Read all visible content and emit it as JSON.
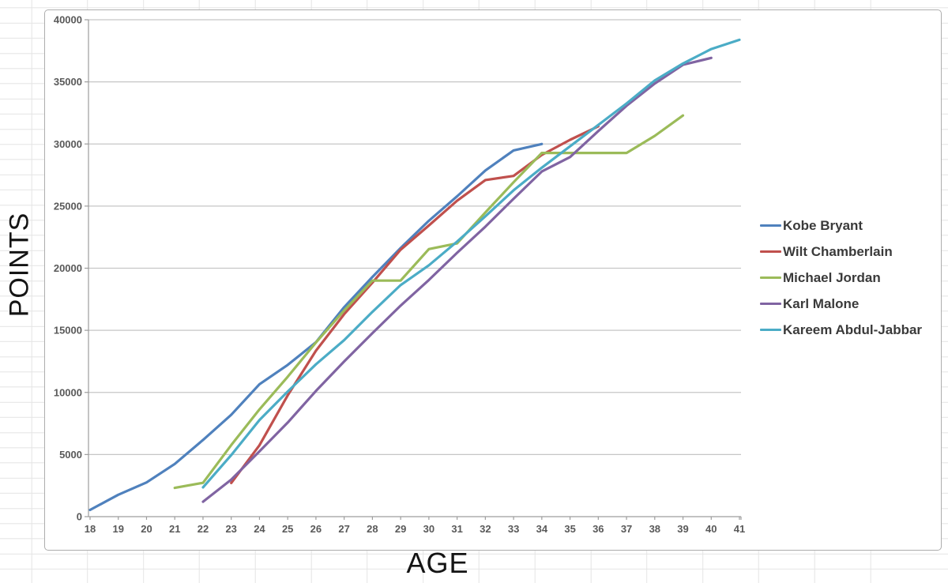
{
  "ui": {
    "colors": {
      "sheet_line": "#e4e4e4",
      "chart_background": "#ffffff",
      "chart_border": "#adadad",
      "plot_gridline": "#c6c6c6",
      "axis_line": "#9d9d9d",
      "tick_label": "#595959",
      "axis_title": "#141414",
      "legend_text": "#3a3a3a"
    }
  },
  "chart_data": {
    "type": "line",
    "title": "",
    "xlabel": "AGE",
    "ylabel": "POINTS",
    "x_ticks": [
      18,
      19,
      20,
      21,
      22,
      23,
      24,
      25,
      26,
      27,
      28,
      29,
      30,
      31,
      32,
      33,
      34,
      35,
      36,
      37,
      38,
      39,
      40,
      41
    ],
    "xlim": [
      18,
      41
    ],
    "ylim": [
      0,
      40000
    ],
    "y_tick_step": 5000,
    "y_tick_labels": [
      "0",
      "5000",
      "10000",
      "15000",
      "20000",
      "25000",
      "30000",
      "35000",
      "40000"
    ],
    "grid": "horizontal-only",
    "legend_position": "right",
    "series": [
      {
        "name": "Kobe Bryant",
        "color": "#4F81BD",
        "start_age": 18,
        "values": [
          539,
          1759,
          2755,
          4240,
          6178,
          8197,
          10658,
          12215,
          14034,
          16866,
          19296,
          21619,
          23820,
          25790,
          27868,
          29484,
          30000
        ]
      },
      {
        "name": "Wilt Chamberlain",
        "color": "#C0504D",
        "start_age": 23,
        "values": [
          2707,
          5740,
          9769,
          13355,
          16303,
          18837,
          21486,
          23442,
          25434,
          27098,
          27426,
          29122,
          30335,
          31419
        ]
      },
      {
        "name": "Michael Jordan",
        "color": "#9BBB59",
        "start_age": 21,
        "values": [
          2313,
          2721,
          5762,
          8630,
          11263,
          14016,
          16596,
          19000,
          19000,
          21541,
          21998,
          24489,
          26920,
          29277,
          29277,
          29277,
          29277,
          30652,
          32292
        ]
      },
      {
        "name": "Karl Malone",
        "color": "#8064A2",
        "start_age": 22,
        "values": [
          1203,
          2982,
          5250,
          7576,
          10116,
          12498,
          14770,
          16987,
          19050,
          21237,
          23343,
          25592,
          27782,
          28946,
          31041,
          33077,
          34859,
          36374,
          36928
        ]
      },
      {
        "name": "Kareem Abdul-Jabbar",
        "color": "#4BACC6",
        "start_age": 22,
        "values": [
          2361,
          4957,
          7779,
          10071,
          12262,
          14211,
          16486,
          18638,
          20238,
          22141,
          24175,
          26270,
          28088,
          29810,
          31527,
          33262,
          35108,
          36474,
          37639,
          38387
        ]
      }
    ]
  }
}
